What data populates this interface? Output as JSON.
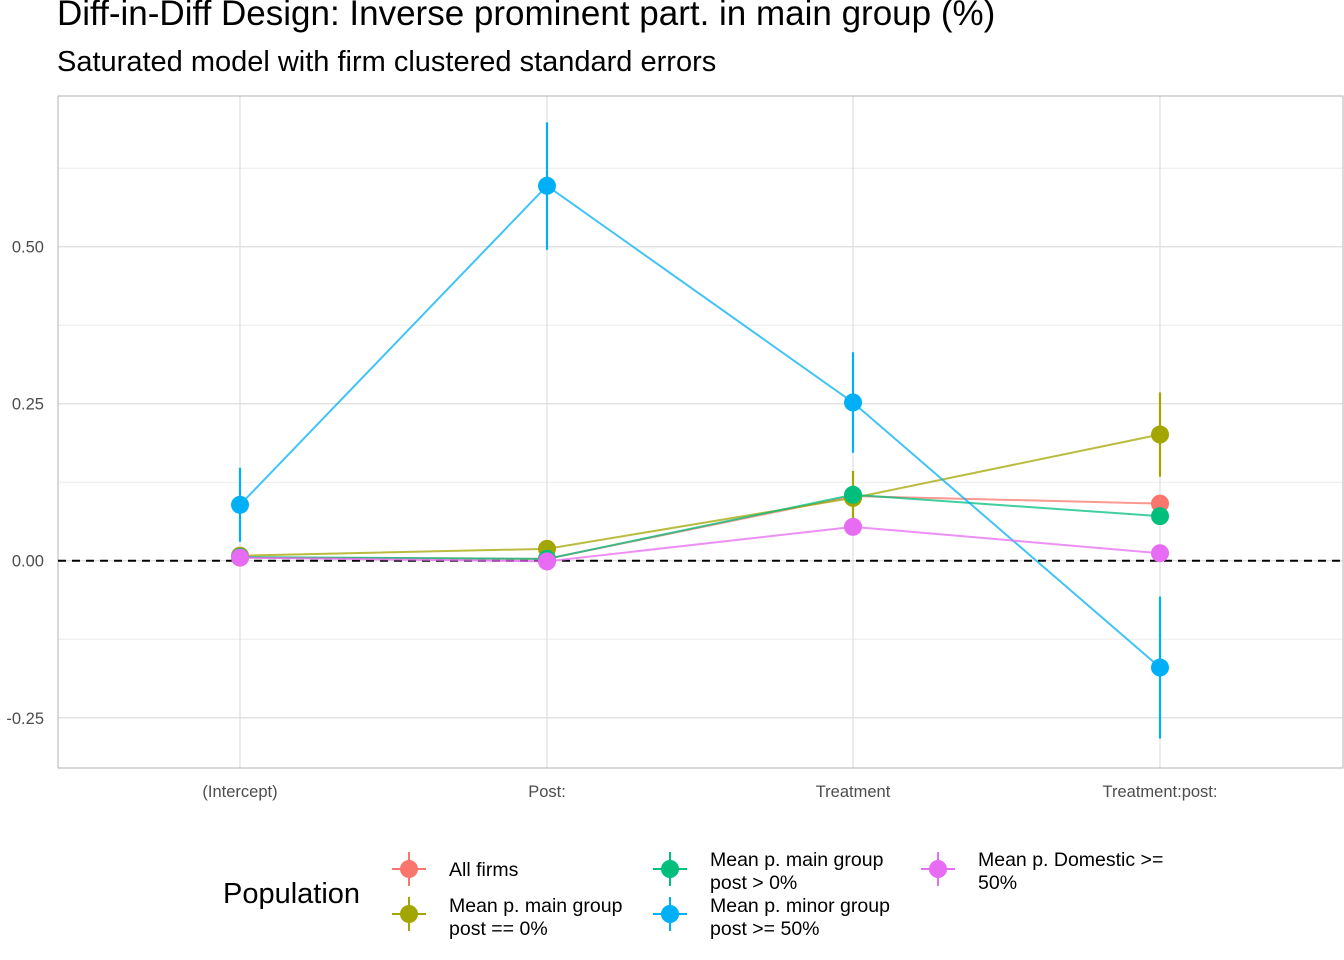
{
  "chart_data": {
    "type": "scatter",
    "title": "Diff-in-Diff Design: Inverse prominent part. in main group (%)",
    "subtitle": "Saturated model with firm clustered standard errors",
    "xlabel": "",
    "ylabel": "",
    "categories": [
      "(Intercept)",
      "Post:",
      "Treatment",
      "Treatment:post:"
    ],
    "ylim": [
      -0.33,
      0.74
    ],
    "yticks": [
      -0.25,
      0.0,
      0.25,
      0.5
    ],
    "ytick_labels": [
      "-0.25",
      "0.00",
      "0.25",
      "0.50"
    ],
    "reference_line": {
      "y": 0,
      "style": "dashed"
    },
    "grid": true,
    "legend": {
      "title": "Population",
      "placement": "bottom"
    },
    "series": [
      {
        "name": "All firms",
        "label_lines": [
          "All firms"
        ],
        "color": "#F8766D",
        "values": [
          0.005,
          0.003,
          0.103,
          0.091
        ],
        "lower": [
          0.0,
          -0.003,
          0.093,
          0.081
        ],
        "upper": [
          0.01,
          0.009,
          0.113,
          0.101
        ]
      },
      {
        "name": "Mean p. main group post == 0%",
        "label_lines": [
          "Mean p. main group",
          "post == 0%"
        ],
        "color": "#A3A500",
        "values": [
          0.008,
          0.019,
          0.1,
          0.201
        ],
        "lower": [
          0.003,
          0.013,
          0.057,
          0.134
        ],
        "upper": [
          0.013,
          0.025,
          0.143,
          0.268
        ]
      },
      {
        "name": "Mean p. main group post > 0%",
        "label_lines": [
          "Mean p. main group",
          "post > 0%"
        ],
        "color": "#00BF7D",
        "values": [
          0.006,
          0.003,
          0.105,
          0.071
        ],
        "lower": [
          0.001,
          -0.003,
          0.095,
          0.061
        ],
        "upper": [
          0.011,
          0.009,
          0.115,
          0.081
        ]
      },
      {
        "name": "Mean p. minor group post >= 50%",
        "label_lines": [
          "Mean p. minor group",
          "post >= 50%"
        ],
        "color": "#00B0F6",
        "values": [
          0.089,
          0.597,
          0.252,
          -0.17
        ],
        "lower": [
          0.03,
          0.495,
          0.172,
          -0.283
        ],
        "upper": [
          0.148,
          0.698,
          0.332,
          -0.057
        ]
      },
      {
        "name": "Mean p. Domestic >= 50%",
        "label_lines": [
          "Mean p. Domestic >=",
          "50%"
        ],
        "color": "#E76BF3",
        "values": [
          0.005,
          -0.001,
          0.054,
          0.012
        ],
        "lower": [
          0.0,
          -0.006,
          0.044,
          0.002
        ],
        "upper": [
          0.01,
          0.004,
          0.064,
          0.022
        ]
      }
    ]
  }
}
